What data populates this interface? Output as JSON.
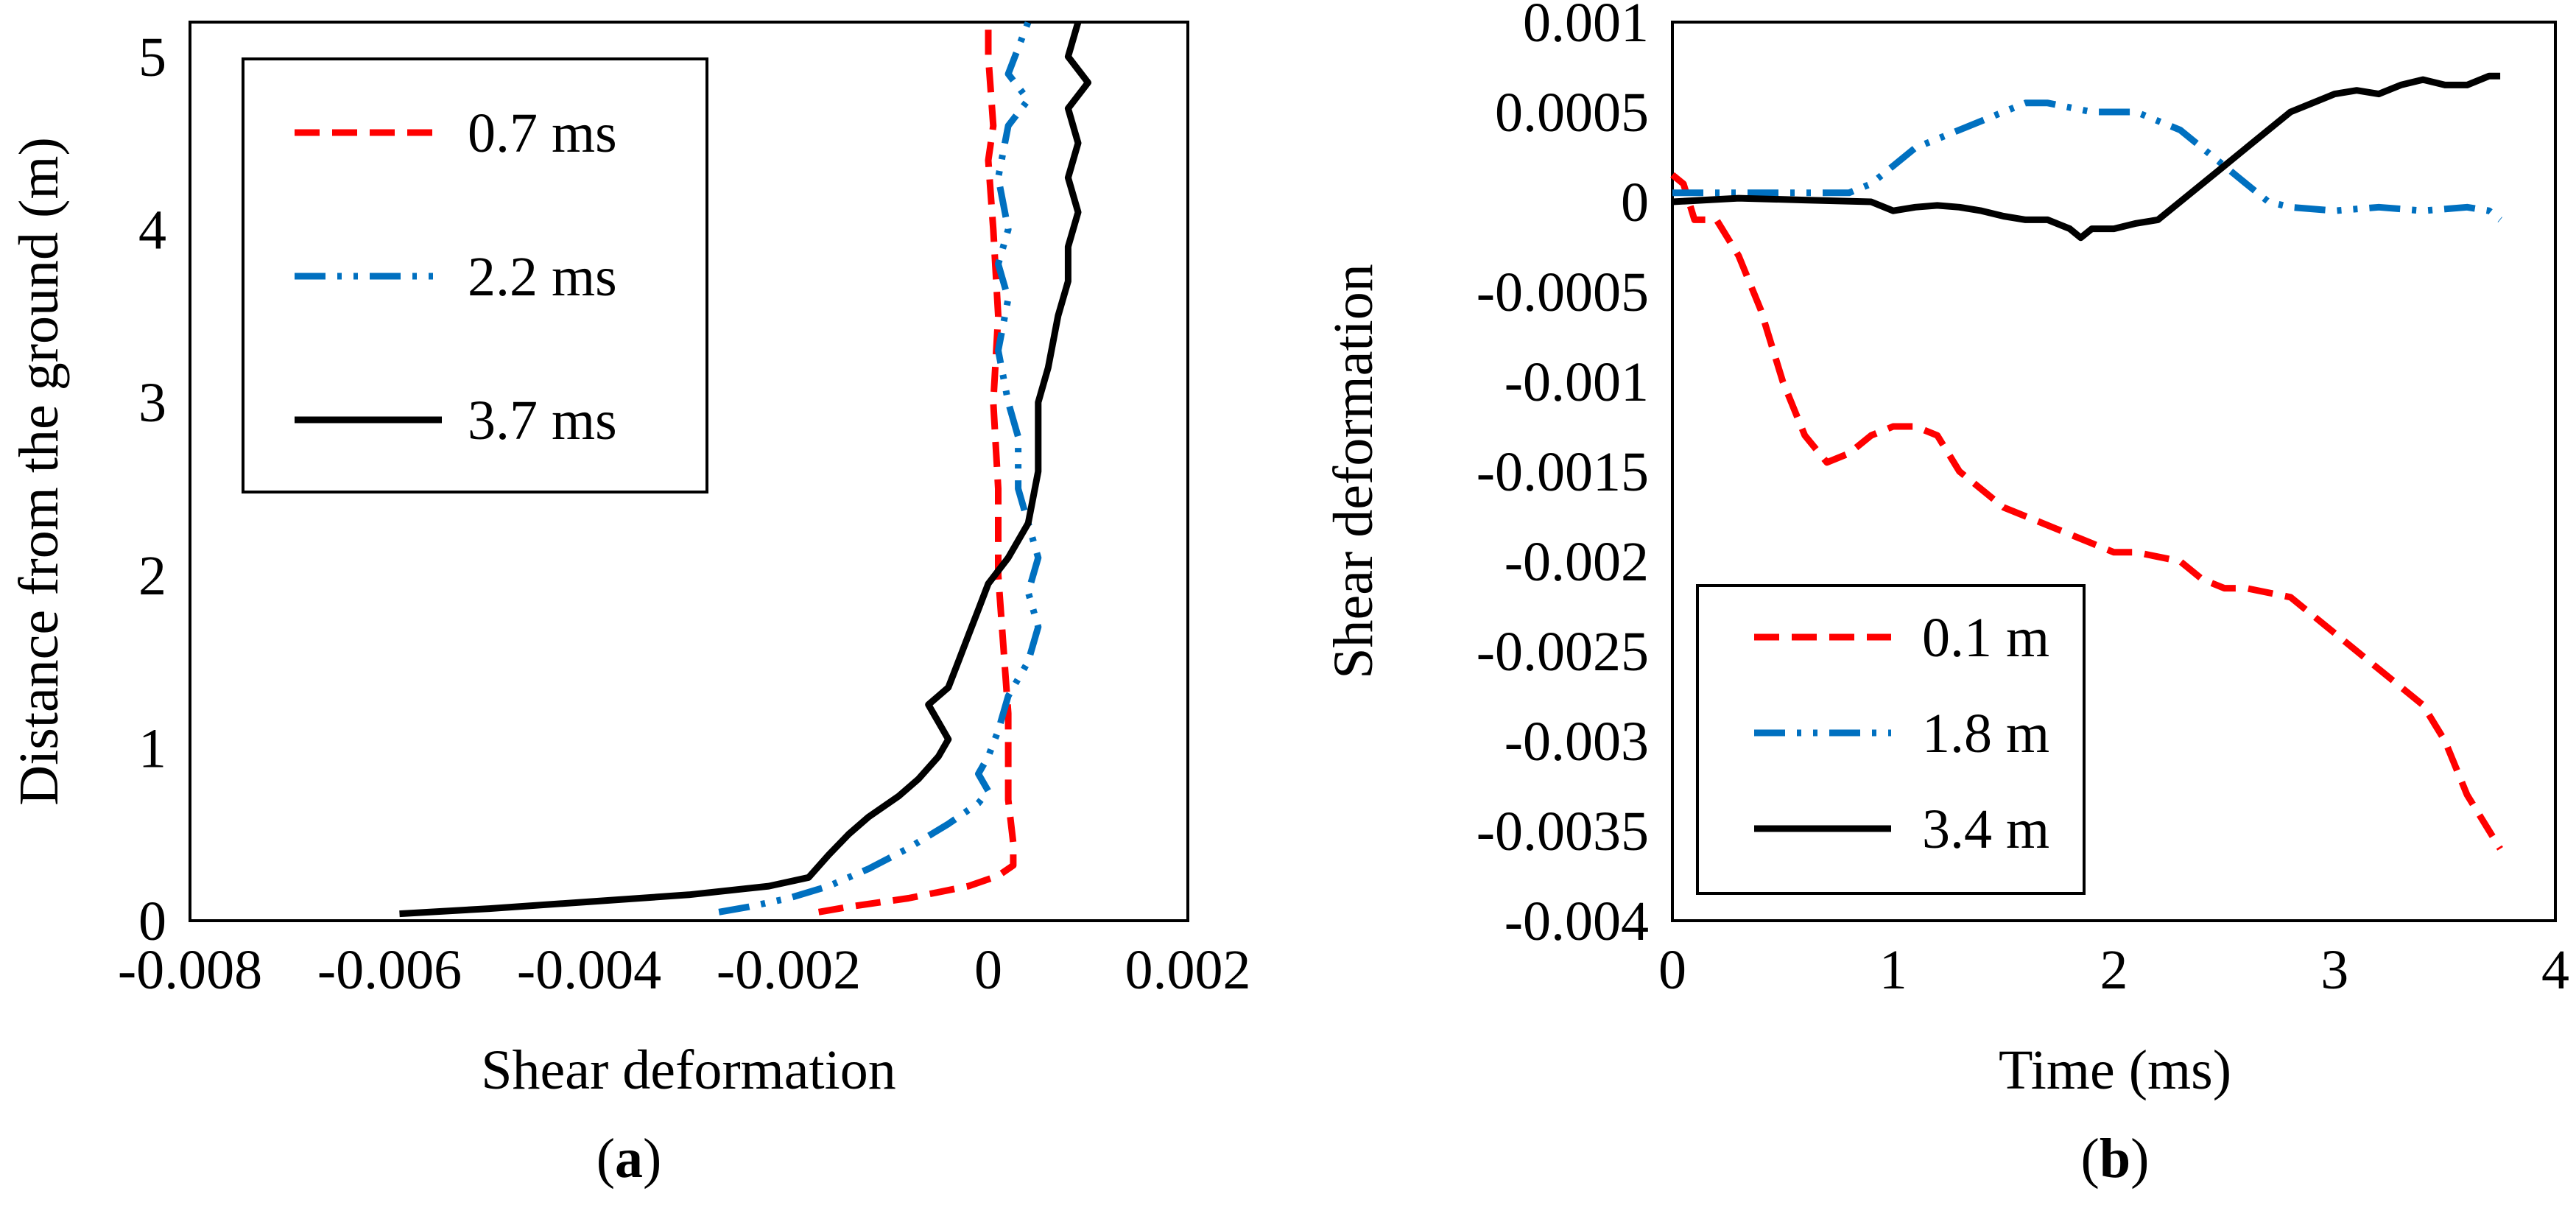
{
  "chart_data": [
    {
      "type": "line",
      "panel_label": "(a)",
      "panel_letter": "a",
      "xlabel": "Shear deformation",
      "ylabel": "Distance from the ground (m)",
      "xlim": [
        -0.008,
        0.002
      ],
      "ylim": [
        0,
        5.2
      ],
      "x_ticks": [
        -0.008,
        -0.006,
        -0.004,
        -0.002,
        0,
        0.002
      ],
      "x_tick_labels": [
        "-0.008",
        "-0.006",
        "-0.004",
        "-0.002",
        "0",
        "0.002"
      ],
      "y_ticks": [
        0,
        1,
        2,
        3,
        4,
        5
      ],
      "y_tick_labels": [
        "0",
        "1",
        "2",
        "3",
        "4",
        "5"
      ],
      "legend_position": "top-left",
      "series": [
        {
          "name": "0.7 ms",
          "color": "#ff0000",
          "dash": "dashed",
          "points": [
            [
              -0.0017,
              0.05
            ],
            [
              -0.0014,
              0.08
            ],
            [
              -0.0008,
              0.13
            ],
            [
              -0.0002,
              0.2
            ],
            [
              0.0001,
              0.26
            ],
            [
              0.00025,
              0.32
            ],
            [
              0.00025,
              0.45
            ],
            [
              0.0002,
              0.7
            ],
            [
              0.0002,
              1.0
            ],
            [
              0.0002,
              1.2
            ],
            [
              0.00015,
              1.6
            ],
            [
              0.0001,
              2.0
            ],
            [
              0.0001,
              2.5
            ],
            [
              5e-05,
              3.0
            ],
            [
              0.0001,
              3.5
            ],
            [
              5e-05,
              4.0
            ],
            [
              0.0,
              4.4
            ],
            [
              5e-05,
              4.6
            ],
            [
              0.0,
              5.0
            ],
            [
              0.0,
              5.2
            ]
          ]
        },
        {
          "name": "2.2 ms",
          "color": "#0070c0",
          "dash": "dashdotdot",
          "points": [
            [
              -0.0027,
              0.05
            ],
            [
              -0.0024,
              0.08
            ],
            [
              -0.002,
              0.13
            ],
            [
              -0.0016,
              0.2
            ],
            [
              -0.0012,
              0.3
            ],
            [
              -0.0008,
              0.42
            ],
            [
              -0.0004,
              0.56
            ],
            [
              -0.0001,
              0.68
            ],
            [
              0.0,
              0.75
            ],
            [
              -0.0001,
              0.85
            ],
            [
              0.0,
              0.95
            ],
            [
              0.0001,
              1.1
            ],
            [
              0.0002,
              1.3
            ],
            [
              0.0004,
              1.5
            ],
            [
              0.0005,
              1.7
            ],
            [
              0.0004,
              1.9
            ],
            [
              0.0005,
              2.1
            ],
            [
              0.0004,
              2.3
            ],
            [
              0.0003,
              2.5
            ],
            [
              0.0003,
              2.8
            ],
            [
              0.0002,
              3.0
            ],
            [
              0.0001,
              3.3
            ],
            [
              0.0002,
              3.6
            ],
            [
              0.0001,
              3.8
            ],
            [
              0.0002,
              4.0
            ],
            [
              0.0001,
              4.3
            ],
            [
              0.0002,
              4.6
            ],
            [
              0.0004,
              4.75
            ],
            [
              0.0002,
              4.9
            ],
            [
              0.0003,
              5.05
            ],
            [
              0.0004,
              5.2
            ]
          ]
        },
        {
          "name": "3.7 ms",
          "color": "#000000",
          "dash": "solid",
          "points": [
            [
              -0.0059,
              0.04
            ],
            [
              -0.005,
              0.07
            ],
            [
              -0.004,
              0.11
            ],
            [
              -0.003,
              0.15
            ],
            [
              -0.0022,
              0.2
            ],
            [
              -0.0018,
              0.25
            ],
            [
              -0.0016,
              0.38
            ],
            [
              -0.0014,
              0.5
            ],
            [
              -0.0012,
              0.6
            ],
            [
              -0.0009,
              0.72
            ],
            [
              -0.0007,
              0.82
            ],
            [
              -0.0005,
              0.95
            ],
            [
              -0.0004,
              1.05
            ],
            [
              -0.0005,
              1.15
            ],
            [
              -0.0006,
              1.25
            ],
            [
              -0.0004,
              1.35
            ],
            [
              -0.0003,
              1.5
            ],
            [
              -0.0002,
              1.65
            ],
            [
              -0.0001,
              1.8
            ],
            [
              0.0,
              1.95
            ],
            [
              0.0002,
              2.1
            ],
            [
              0.0004,
              2.3
            ],
            [
              0.0005,
              2.6
            ],
            [
              0.0005,
              3.0
            ],
            [
              0.0006,
              3.2
            ],
            [
              0.0007,
              3.5
            ],
            [
              0.0008,
              3.7
            ],
            [
              0.0008,
              3.9
            ],
            [
              0.0009,
              4.1
            ],
            [
              0.0008,
              4.3
            ],
            [
              0.0009,
              4.5
            ],
            [
              0.0008,
              4.7
            ],
            [
              0.001,
              4.85
            ],
            [
              0.0008,
              5.0
            ],
            [
              0.0009,
              5.2
            ]
          ]
        }
      ]
    },
    {
      "type": "line",
      "panel_label": "(b)",
      "panel_letter": "b",
      "xlabel": "Time (ms)",
      "ylabel": "Shear deformation",
      "xlim": [
        0,
        4
      ],
      "ylim": [
        -0.004,
        0.001
      ],
      "x_ticks": [
        0,
        1,
        2,
        3,
        4
      ],
      "x_tick_labels": [
        "0",
        "1",
        "2",
        "3",
        "4"
      ],
      "y_ticks": [
        -0.004,
        -0.0035,
        -0.003,
        -0.0025,
        -0.002,
        -0.0015,
        -0.001,
        -0.0005,
        0,
        0.0005,
        0.001
      ],
      "y_tick_labels": [
        "-0.004",
        "-0.0035",
        "-0.003",
        "-0.0025",
        "-0.002",
        "-0.0015",
        "-0.001",
        "-0.0005",
        "0",
        "0.0005",
        "0.001"
      ],
      "legend_position": "bottom-left",
      "series": [
        {
          "name": "0.1 m",
          "color": "#ff0000",
          "dash": "dashed",
          "points": [
            [
              0.0,
              0.00015
            ],
            [
              0.05,
              0.0001
            ],
            [
              0.1,
              -0.0001
            ],
            [
              0.2,
              -0.0001
            ],
            [
              0.3,
              -0.0003
            ],
            [
              0.4,
              -0.0006
            ],
            [
              0.5,
              -0.001
            ],
            [
              0.6,
              -0.0013
            ],
            [
              0.7,
              -0.00145
            ],
            [
              0.8,
              -0.0014
            ],
            [
              0.9,
              -0.0013
            ],
            [
              1.0,
              -0.00125
            ],
            [
              1.1,
              -0.00125
            ],
            [
              1.2,
              -0.0013
            ],
            [
              1.3,
              -0.0015
            ],
            [
              1.4,
              -0.0016
            ],
            [
              1.5,
              -0.0017
            ],
            [
              1.7,
              -0.0018
            ],
            [
              1.9,
              -0.0019
            ],
            [
              2.0,
              -0.00195
            ],
            [
              2.1,
              -0.00195
            ],
            [
              2.3,
              -0.002
            ],
            [
              2.4,
              -0.0021
            ],
            [
              2.5,
              -0.00215
            ],
            [
              2.6,
              -0.00215
            ],
            [
              2.8,
              -0.0022
            ],
            [
              3.0,
              -0.0024
            ],
            [
              3.2,
              -0.0026
            ],
            [
              3.4,
              -0.0028
            ],
            [
              3.5,
              -0.003
            ],
            [
              3.6,
              -0.0033
            ],
            [
              3.7,
              -0.0035
            ],
            [
              3.75,
              -0.0036
            ]
          ]
        },
        {
          "name": "1.8 m",
          "color": "#0070c0",
          "dash": "dashdotdot",
          "points": [
            [
              0.0,
              5e-05
            ],
            [
              0.3,
              5e-05
            ],
            [
              0.5,
              5e-05
            ],
            [
              0.7,
              5e-05
            ],
            [
              0.8,
              5e-05
            ],
            [
              0.9,
              0.0001
            ],
            [
              1.0,
              0.0002
            ],
            [
              1.1,
              0.0003
            ],
            [
              1.3,
              0.0004
            ],
            [
              1.5,
              0.0005
            ],
            [
              1.6,
              0.00055
            ],
            [
              1.7,
              0.00055
            ],
            [
              1.9,
              0.0005
            ],
            [
              2.0,
              0.0005
            ],
            [
              2.1,
              0.0005
            ],
            [
              2.2,
              0.00045
            ],
            [
              2.3,
              0.0004
            ],
            [
              2.4,
              0.0003
            ],
            [
              2.5,
              0.0002
            ],
            [
              2.6,
              0.0001
            ],
            [
              2.7,
              0.0
            ],
            [
              2.8,
              -3e-05
            ],
            [
              3.0,
              -5e-05
            ],
            [
              3.2,
              -3e-05
            ],
            [
              3.4,
              -5e-05
            ],
            [
              3.6,
              -3e-05
            ],
            [
              3.7,
              -5e-05
            ],
            [
              3.75,
              -0.0001
            ]
          ]
        },
        {
          "name": "3.4 m",
          "color": "#000000",
          "dash": "solid",
          "points": [
            [
              0.0,
              0.0
            ],
            [
              0.3,
              2e-05
            ],
            [
              0.6,
              1e-05
            ],
            [
              0.9,
              0.0
            ],
            [
              1.0,
              -5e-05
            ],
            [
              1.1,
              -3e-05
            ],
            [
              1.2,
              -2e-05
            ],
            [
              1.3,
              -3e-05
            ],
            [
              1.4,
              -5e-05
            ],
            [
              1.5,
              -8e-05
            ],
            [
              1.6,
              -0.0001
            ],
            [
              1.7,
              -0.0001
            ],
            [
              1.8,
              -0.00015
            ],
            [
              1.85,
              -0.0002
            ],
            [
              1.9,
              -0.00015
            ],
            [
              2.0,
              -0.00015
            ],
            [
              2.1,
              -0.00012
            ],
            [
              2.2,
              -0.0001
            ],
            [
              2.3,
              0.0
            ],
            [
              2.4,
              0.0001
            ],
            [
              2.5,
              0.0002
            ],
            [
              2.6,
              0.0003
            ],
            [
              2.7,
              0.0004
            ],
            [
              2.8,
              0.0005
            ],
            [
              2.9,
              0.00055
            ],
            [
              3.0,
              0.0006
            ],
            [
              3.1,
              0.00062
            ],
            [
              3.2,
              0.0006
            ],
            [
              3.3,
              0.00065
            ],
            [
              3.4,
              0.00068
            ],
            [
              3.5,
              0.00065
            ],
            [
              3.6,
              0.00065
            ],
            [
              3.7,
              0.0007
            ],
            [
              3.75,
              0.0007
            ]
          ]
        }
      ]
    }
  ]
}
